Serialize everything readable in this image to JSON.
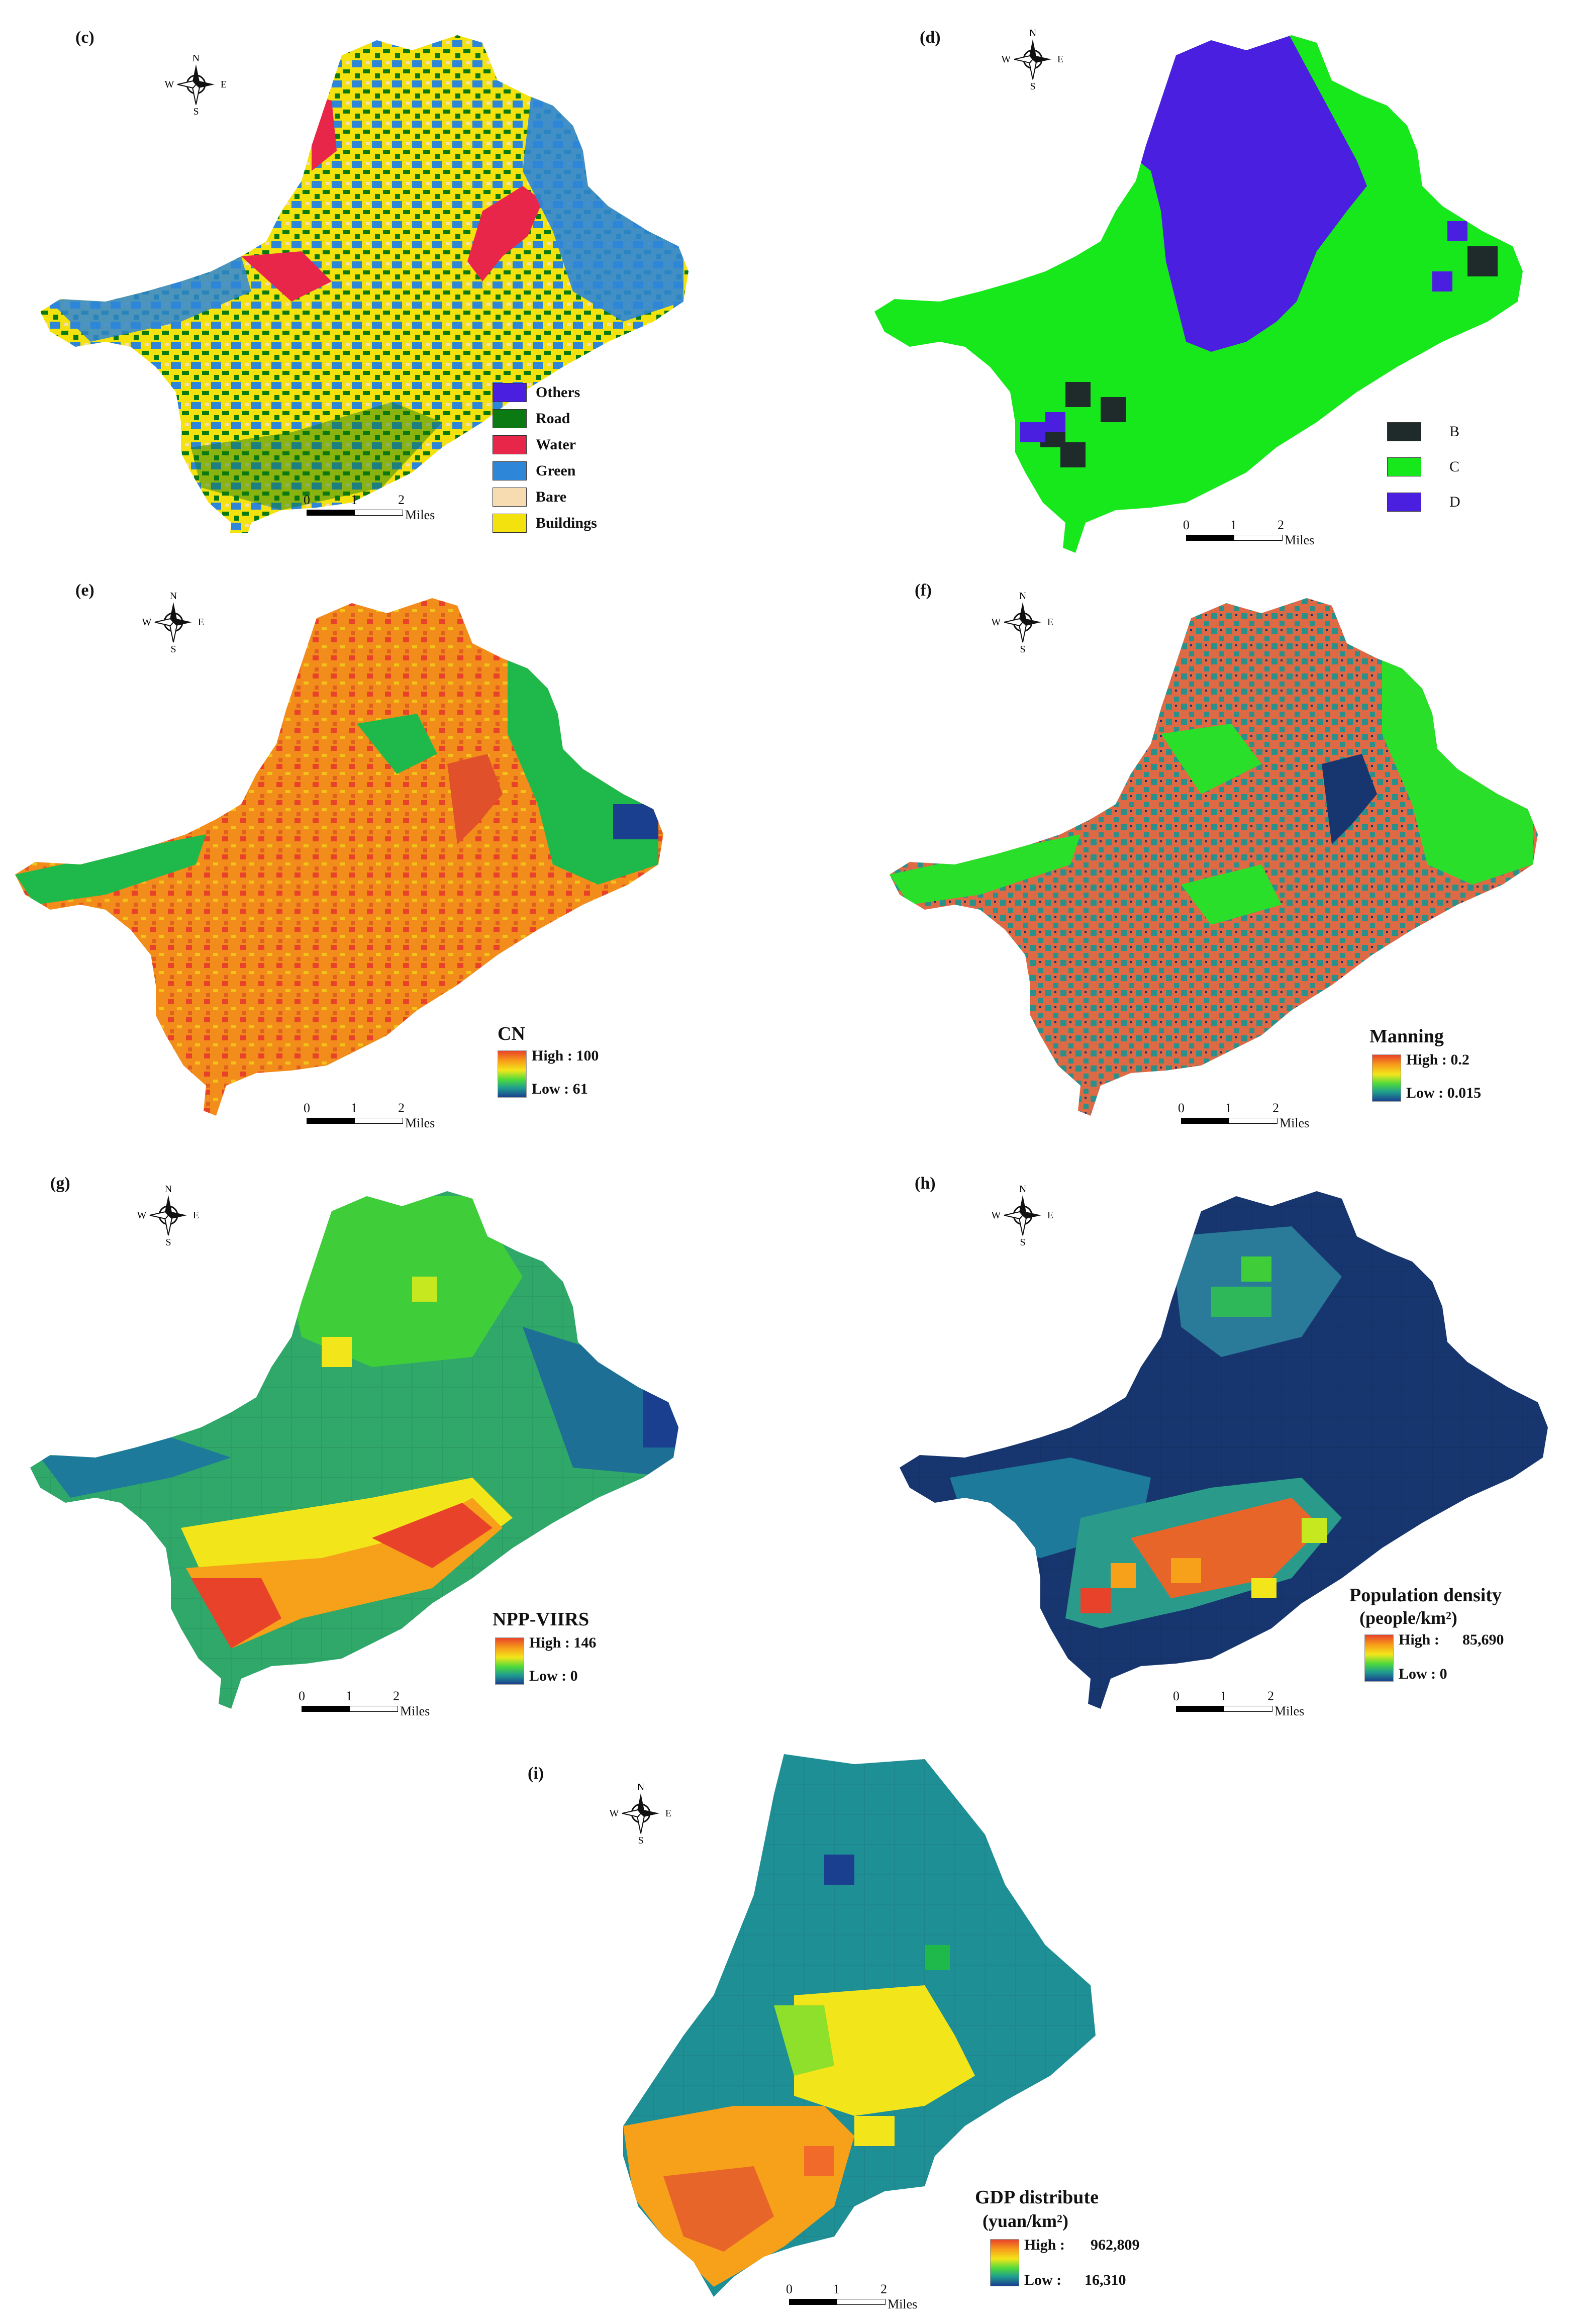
{
  "compass": {
    "n": "N",
    "s": "S",
    "w": "W",
    "e": "E"
  },
  "scale": {
    "t0": "0",
    "t1": "1",
    "t2": "2",
    "units": "Miles"
  },
  "panels": {
    "c": {
      "label": "(c)",
      "legend": [
        {
          "name": "Others",
          "color": "#4b1fe0"
        },
        {
          "name": "Road",
          "color": "#0c7a12"
        },
        {
          "name": "Water",
          "color": "#e8264a"
        },
        {
          "name": "Green",
          "color": "#2e86d8"
        },
        {
          "name": "Bare",
          "color": "#f6dcb0"
        },
        {
          "name": "Buildings",
          "color": "#f4e20f"
        }
      ]
    },
    "d": {
      "label": "(d)",
      "legend": [
        {
          "name": "B",
          "color": "#1f2b2b"
        },
        {
          "name": "C",
          "color": "#17e81c"
        },
        {
          "name": "D",
          "color": "#4b1fe0"
        }
      ]
    },
    "e": {
      "label": "(e)",
      "title": "CN",
      "high": "High : 100",
      "low": "Low : 61"
    },
    "f": {
      "label": "(f)",
      "title": "Manning",
      "high": "High : 0.2",
      "low": "Low : 0.015"
    },
    "g": {
      "label": "(g)",
      "title": "NPP-VIIRS",
      "high": "High : 146",
      "low": "Low : 0"
    },
    "h": {
      "label": "(h)",
      "title": "Population density",
      "unit": "(people/km²)",
      "high_prefix": "High :",
      "high_value": "85,690",
      "low": "Low : 0"
    },
    "i": {
      "label": "(i)",
      "title": "GDP distribute",
      "unit": "(yuan/km²)",
      "high_prefix": "High :",
      "high_value": "962,809",
      "low_prefix": "Low :",
      "low_value": "16,310"
    }
  },
  "colors": {
    "ramp_high": "#e8432a",
    "ramp_mid": "#f2e61b",
    "ramp_low": "#1a3f8f"
  }
}
